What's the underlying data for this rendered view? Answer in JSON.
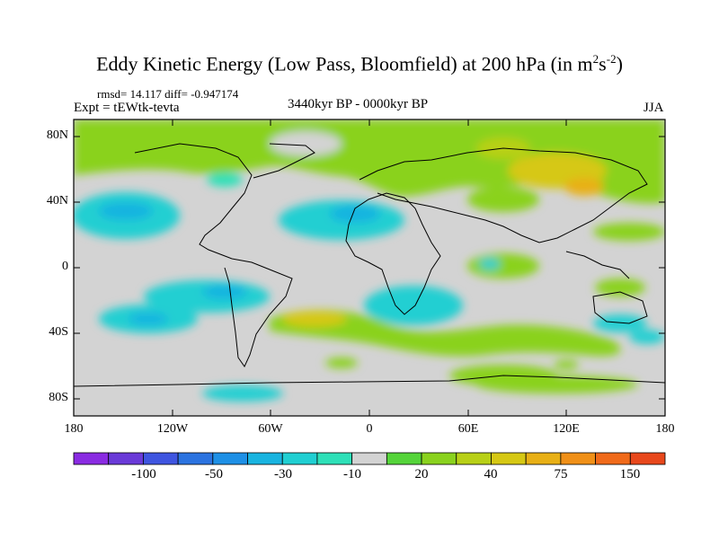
{
  "title": {
    "main": "Eddy Kinetic Energy (Low Pass, Bloomfield) at 200 hPa (in m",
    "sup1": "2",
    "mid": "s",
    "sup2": "-2",
    "end": ")"
  },
  "stats": "rmsd= 14.117 diff= -0.947174",
  "experiment": "Expt = tEWtk-tevta",
  "period": "3440kyr BP - 0000kyr BP",
  "season": "JJA",
  "map": {
    "lat_labels": [
      "80N",
      "40N",
      "0",
      "40S",
      "80S"
    ],
    "lon_labels": [
      "180",
      "120W",
      "60W",
      "0",
      "60E",
      "120E",
      "180"
    ],
    "background_color": "#d3d3d3"
  },
  "colorbar": {
    "colors": [
      "#8a2be2",
      "#6a3ad8",
      "#3f55e0",
      "#2b73e0",
      "#1e90e6",
      "#19b4e0",
      "#20cfd2",
      "#2ee0b8",
      "#d3d3d3",
      "#55d43a",
      "#8ad21e",
      "#b8d017",
      "#d6c814",
      "#e8b016",
      "#f09018",
      "#f06a1a",
      "#e8481c"
    ],
    "labels": [
      "-100",
      "-50",
      "-30",
      "-10",
      "20",
      "40",
      "75",
      "150"
    ]
  }
}
